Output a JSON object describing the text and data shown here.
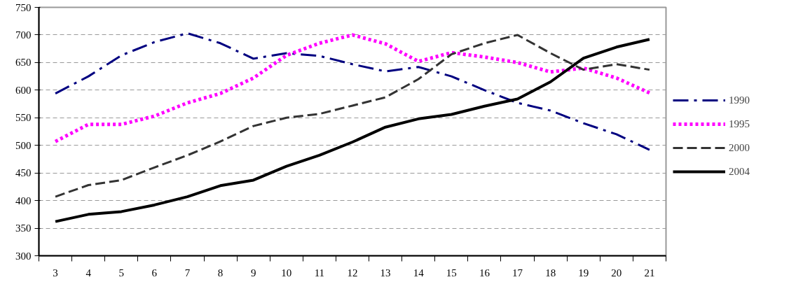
{
  "chart_data": {
    "type": "line",
    "categories": [
      "3",
      "4",
      "5",
      "6",
      "7",
      "8",
      "9",
      "10",
      "11",
      "12",
      "13",
      "14",
      "15",
      "16",
      "17",
      "18",
      "19",
      "20",
      "21"
    ],
    "series": [
      {
        "name": "1990",
        "color": "#000080",
        "line_style": "dashdot",
        "values": [
          594,
          625,
          663,
          687,
          703,
          685,
          657,
          667,
          662,
          647,
          634,
          642,
          625,
          600,
          577,
          563,
          540,
          520,
          492
        ]
      },
      {
        "name": "1995",
        "color": "#ff00ff",
        "line_style": "dotted",
        "values": [
          507,
          538,
          538,
          553,
          577,
          594,
          622,
          663,
          685,
          700,
          684,
          652,
          668,
          660,
          650,
          633,
          640,
          622,
          595
        ]
      },
      {
        "name": "2000",
        "color": "#333333",
        "line_style": "dashed",
        "values": [
          407,
          428,
          437,
          460,
          482,
          507,
          535,
          550,
          557,
          572,
          587,
          620,
          665,
          685,
          700,
          667,
          637,
          647,
          637
        ]
      },
      {
        "name": "2004",
        "color": "#000000",
        "line_style": "solid",
        "values": [
          362,
          375,
          380,
          392,
          407,
          427,
          437,
          462,
          482,
          506,
          533,
          548,
          556,
          571,
          584,
          615,
          658,
          678,
          692
        ]
      }
    ],
    "ylim": [
      300,
      750
    ],
    "yticks": [
      300,
      350,
      400,
      450,
      500,
      550,
      600,
      650,
      700,
      750
    ],
    "grid": "y",
    "legend": "right",
    "marker": "none"
  }
}
